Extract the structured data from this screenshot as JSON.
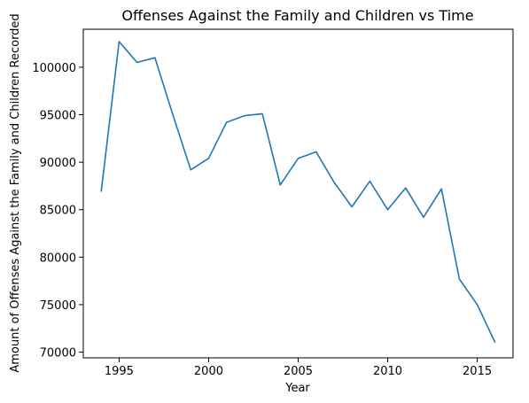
{
  "chart_data": {
    "type": "line",
    "title": "Offenses Against the Family and Children vs Time",
    "xlabel": "Year",
    "ylabel": "Amount of Offenses Against the Family and Children Recorded",
    "xlim": [
      1993,
      2017
    ],
    "ylim": [
      69400,
      104000
    ],
    "xticks": [
      1995,
      2000,
      2005,
      2010,
      2015
    ],
    "yticks": [
      70000,
      75000,
      80000,
      85000,
      90000,
      95000,
      100000
    ],
    "grid": false,
    "series": [
      {
        "color": "#1f77b4",
        "x": [
          1994,
          1995,
          1996,
          1997,
          1998,
          1999,
          2000,
          2001,
          2002,
          2003,
          2004,
          2005,
          2006,
          2007,
          2008,
          2009,
          2010,
          2011,
          2012,
          2013,
          2014,
          2015,
          2016
        ],
        "y": [
          86900,
          102700,
          100500,
          101000,
          95000,
          89200,
          90400,
          94200,
          94900,
          95100,
          87600,
          90400,
          91100,
          87900,
          85300,
          88000,
          85000,
          87300,
          84200,
          87200,
          77700,
          75000,
          71000
        ]
      }
    ]
  }
}
